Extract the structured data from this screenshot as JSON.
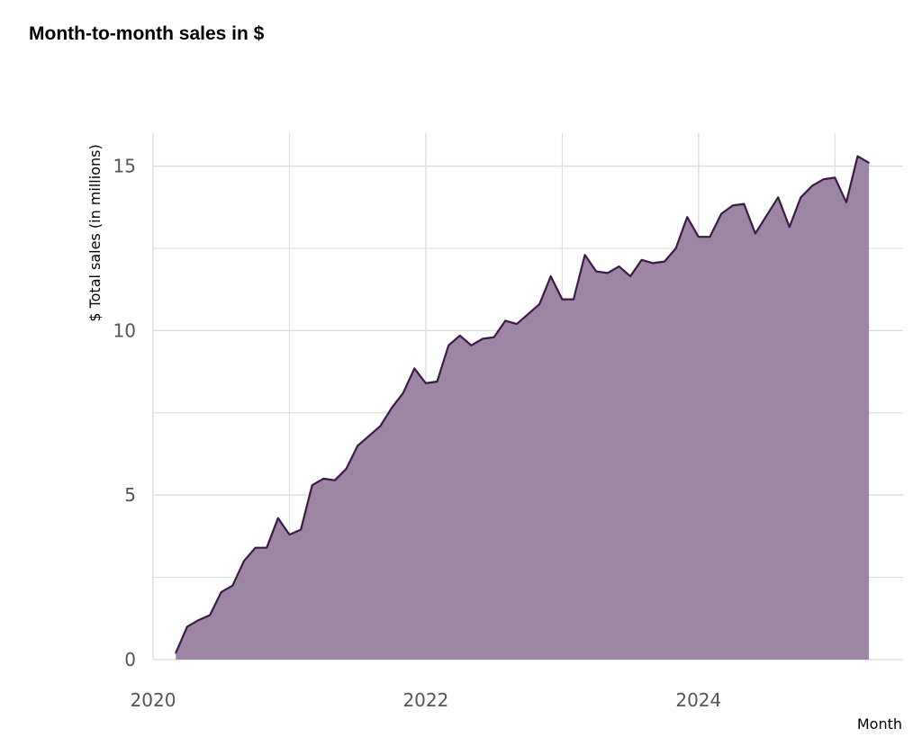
{
  "title": "Month-to-month sales in $",
  "colors": {
    "area_fill": "#9c86a4",
    "line": "#3c1a48",
    "grid": "#dcdcdc",
    "tick_text": "#555555"
  },
  "chart_data": {
    "type": "area",
    "title": "Month-to-month sales in $",
    "xlabel": "Month",
    "ylabel": "$ Total sales (in millions)",
    "x_start": "2020-03",
    "x_interval": "month",
    "values": [
      0.2,
      1.0,
      1.2,
      1.35,
      2.05,
      2.25,
      3.0,
      3.4,
      3.4,
      4.3,
      3.8,
      3.95,
      5.3,
      5.5,
      5.45,
      5.8,
      6.5,
      6.8,
      7.1,
      7.65,
      8.1,
      8.85,
      8.4,
      8.45,
      9.55,
      9.85,
      9.55,
      9.75,
      9.8,
      10.3,
      10.2,
      10.5,
      10.8,
      11.65,
      10.95,
      10.95,
      12.3,
      11.8,
      11.75,
      11.95,
      11.65,
      12.15,
      12.05,
      12.1,
      12.5,
      13.45,
      12.85,
      12.85,
      13.55,
      13.8,
      13.85,
      12.95,
      13.5,
      14.05,
      13.15,
      14.05,
      14.4,
      14.6,
      14.65,
      13.9,
      15.3,
      15.1
    ],
    "x_ticks": [
      "2020",
      "2022",
      "2024"
    ],
    "y_ticks": [
      0,
      5,
      10,
      15
    ],
    "xlim": [
      "2020-01",
      "2025-07"
    ],
    "ylim": [
      0,
      16
    ],
    "grid": true
  }
}
